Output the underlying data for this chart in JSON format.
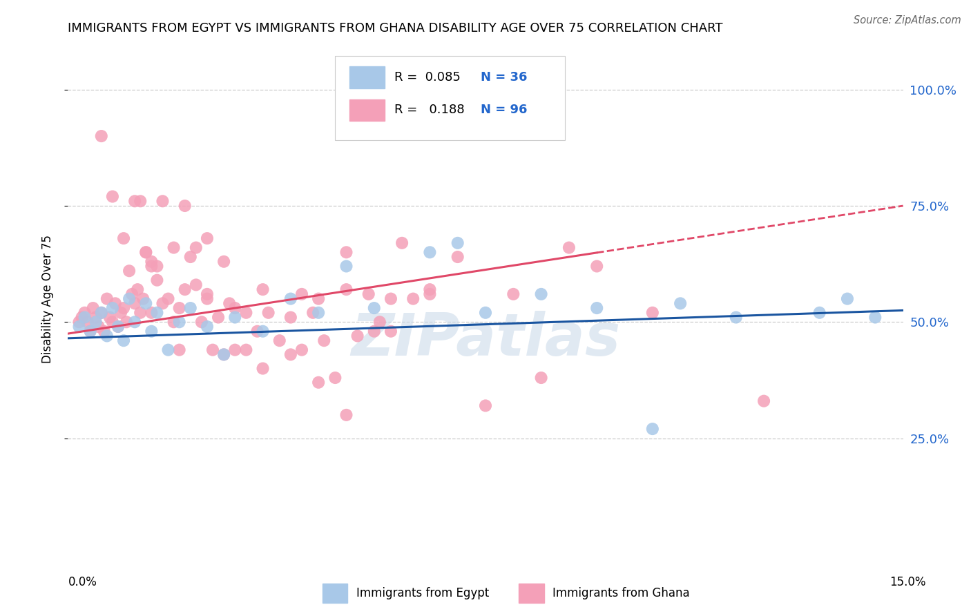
{
  "title": "IMMIGRANTS FROM EGYPT VS IMMIGRANTS FROM GHANA DISABILITY AGE OVER 75 CORRELATION CHART",
  "source": "Source: ZipAtlas.com",
  "ylabel": "Disability Age Over 75",
  "legend_egypt": "Immigrants from Egypt",
  "legend_ghana": "Immigrants from Ghana",
  "r_egypt": "0.085",
  "n_egypt": "36",
  "r_ghana": "0.188",
  "n_ghana": "96",
  "color_egypt": "#a8c8e8",
  "color_ghana": "#f4a0b8",
  "line_egypt": "#1a55a0",
  "line_ghana": "#e04868",
  "watermark": "ZIPatlas",
  "xlim": [
    0.0,
    15.0
  ],
  "ylim": [
    0.0,
    110.0
  ],
  "ytick_vals": [
    25,
    50,
    75,
    100
  ],
  "background": "#ffffff",
  "egypt_line_x0": 0.0,
  "egypt_line_y0": 46.5,
  "egypt_line_x1": 15.0,
  "egypt_line_y1": 52.5,
  "ghana_line_x0": 0.0,
  "ghana_line_y0": 47.5,
  "ghana_line_x1": 15.0,
  "ghana_line_y1": 75.0,
  "ghana_solid_end_x": 9.5,
  "egypt_x": [
    0.2,
    0.3,
    0.4,
    0.5,
    0.6,
    0.7,
    0.8,
    0.9,
    1.0,
    1.1,
    1.2,
    1.4,
    1.5,
    1.6,
    1.8,
    2.0,
    2.2,
    2.5,
    2.8,
    3.0,
    3.5,
    4.0,
    4.5,
    5.5,
    6.5,
    7.5,
    8.5,
    9.5,
    10.5,
    11.0,
    12.0,
    13.5,
    14.0,
    14.5,
    5.0,
    7.0
  ],
  "egypt_y": [
    49,
    51,
    48,
    50,
    52,
    47,
    53,
    49,
    46,
    55,
    50,
    54,
    48,
    52,
    44,
    50,
    53,
    49,
    43,
    51,
    48,
    55,
    52,
    53,
    65,
    52,
    56,
    53,
    27,
    54,
    51,
    52,
    55,
    51,
    62,
    67
  ],
  "ghana_x": [
    0.2,
    0.25,
    0.3,
    0.35,
    0.4,
    0.45,
    0.5,
    0.55,
    0.6,
    0.65,
    0.7,
    0.75,
    0.8,
    0.85,
    0.9,
    0.95,
    1.0,
    1.05,
    1.1,
    1.15,
    1.2,
    1.25,
    1.3,
    1.35,
    1.4,
    1.5,
    1.6,
    1.7,
    1.8,
    1.9,
    2.0,
    2.1,
    2.2,
    2.3,
    2.4,
    2.5,
    2.6,
    2.7,
    2.8,
    2.9,
    3.0,
    3.2,
    3.4,
    3.6,
    3.8,
    4.0,
    4.2,
    4.4,
    4.6,
    4.8,
    5.0,
    5.2,
    5.4,
    5.6,
    5.8,
    6.0,
    6.2,
    6.5,
    7.0,
    7.5,
    8.0,
    8.5,
    9.0,
    9.5,
    10.5,
    12.5,
    1.3,
    1.5,
    1.7,
    1.9,
    2.1,
    2.3,
    0.6,
    0.8,
    1.0,
    1.2,
    1.4,
    1.6,
    2.5,
    2.8,
    3.5,
    4.5,
    5.5,
    5.0,
    6.5,
    3.2,
    4.2,
    5.8,
    1.5,
    2.0,
    2.5,
    3.0,
    3.5,
    4.0,
    4.5,
    5.0
  ],
  "ghana_y": [
    50,
    51,
    52,
    50,
    48,
    53,
    51,
    49,
    52,
    48,
    55,
    51,
    50,
    54,
    49,
    52,
    53,
    50,
    61,
    56,
    54,
    57,
    52,
    55,
    65,
    63,
    59,
    54,
    55,
    50,
    53,
    57,
    64,
    58,
    50,
    56,
    44,
    51,
    43,
    54,
    53,
    44,
    48,
    52,
    46,
    51,
    44,
    52,
    46,
    38,
    57,
    47,
    56,
    50,
    55,
    67,
    55,
    57,
    64,
    32,
    56,
    38,
    66,
    62,
    52,
    33,
    76,
    62,
    76,
    66,
    75,
    66,
    90,
    77,
    68,
    76,
    65,
    62,
    68,
    63,
    57,
    55,
    48,
    65,
    56,
    52,
    56,
    48,
    52,
    44,
    55,
    44,
    40,
    43,
    37,
    30
  ]
}
